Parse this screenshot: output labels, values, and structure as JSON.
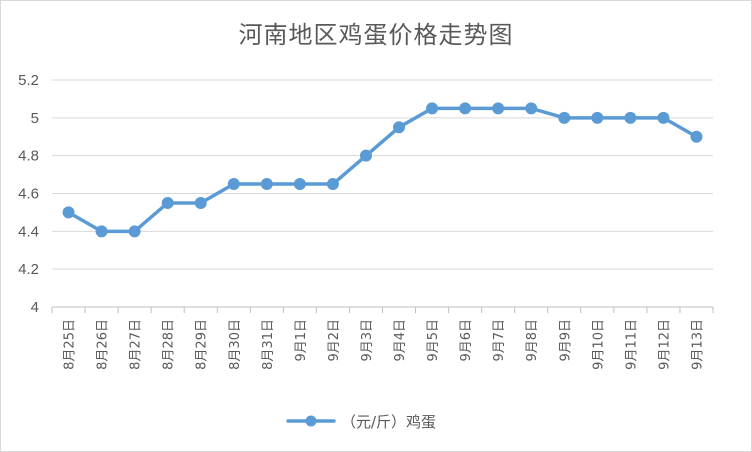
{
  "chart_data": {
    "type": "line",
    "title": "河南地区鸡蛋价格走势图",
    "categories": [
      "8月25日",
      "8月26日",
      "8月27日",
      "8月28日",
      "8月29日",
      "8月30日",
      "8月31日",
      "9月1日",
      "9月2日",
      "9月3日",
      "9月4日",
      "9月5日",
      "9月6日",
      "9月7日",
      "9月8日",
      "9月9日",
      "9月10日",
      "9月11日",
      "9月12日",
      "9月13日"
    ],
    "series": [
      {
        "name": "（元/斤）鸡蛋",
        "values": [
          4.5,
          4.4,
          4.4,
          4.55,
          4.55,
          4.65,
          4.65,
          4.65,
          4.65,
          4.8,
          4.95,
          5.05,
          5.05,
          5.05,
          5.05,
          5,
          5,
          5,
          5,
          4.9
        ]
      }
    ],
    "ylim": [
      4,
      5.2
    ],
    "yticks": [
      "4",
      "4.2",
      "4.4",
      "4.6",
      "4.8",
      "5",
      "5.2"
    ],
    "grid": true,
    "legend_position": "bottom",
    "colors": {
      "series": "#5b9bd5",
      "grid": "#d9d9d9",
      "axis": "#bfbfbf",
      "text": "#595959"
    }
  }
}
